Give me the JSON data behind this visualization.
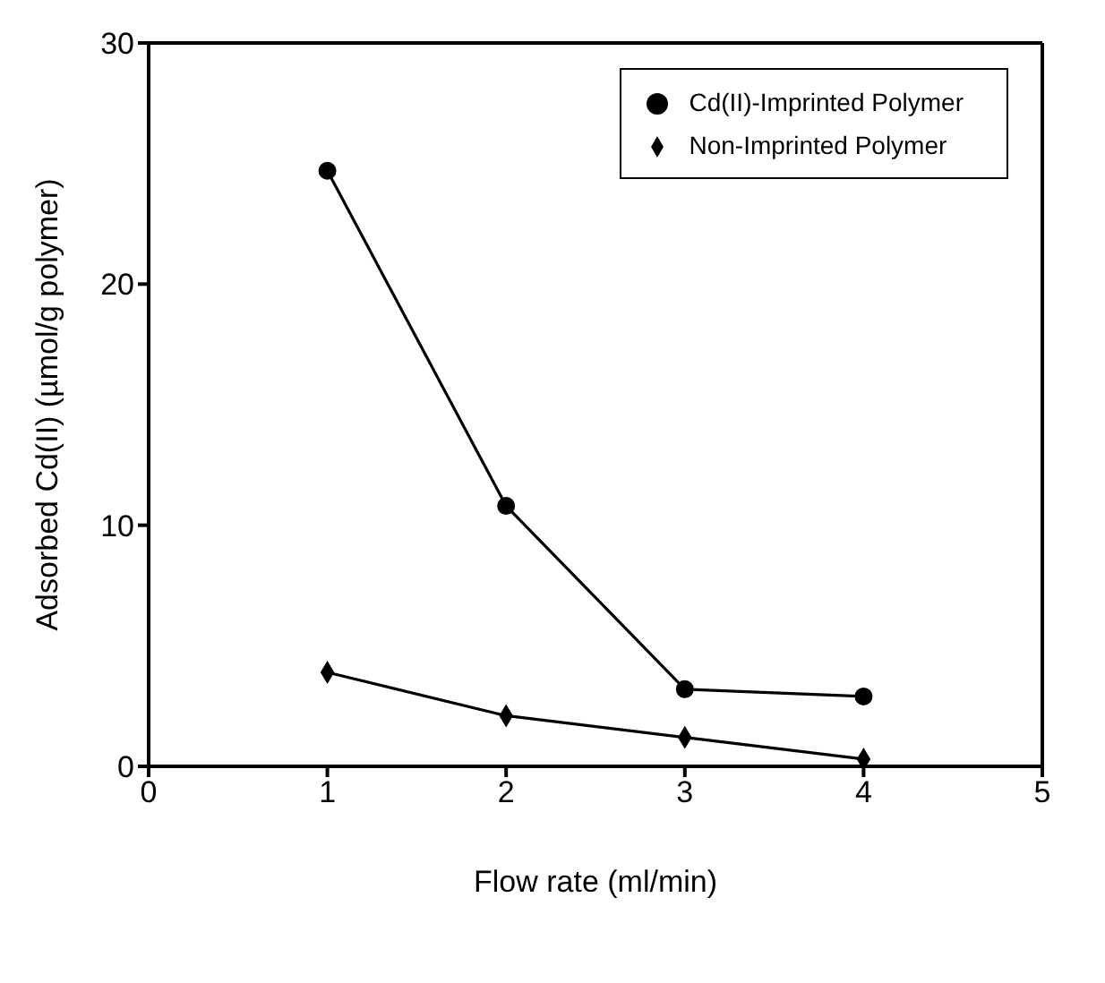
{
  "chart_data": {
    "type": "line",
    "xlabel": "Flow rate (ml/min)",
    "ylabel": "Adsorbed Cd(II) (µmol/g polymer)",
    "x": [
      1,
      2,
      3,
      4
    ],
    "xlim": [
      0,
      5
    ],
    "xticks": [
      0,
      1,
      2,
      3,
      4,
      5
    ],
    "ylim": [
      0,
      30
    ],
    "yticks": [
      0,
      10,
      20,
      30
    ],
    "grid": false,
    "legend": "top right",
    "line_style": "solid",
    "series": [
      {
        "name": "Cd(II)-Imprinted Polymer",
        "color": "#000000",
        "marker": "circle",
        "values": [
          24.7,
          10.8,
          3.2,
          2.9
        ]
      },
      {
        "name": "Non-Imprinted Polymer",
        "color": "#000000",
        "marker": "diamond",
        "values": [
          3.9,
          2.1,
          1.2,
          0.3
        ]
      }
    ]
  }
}
